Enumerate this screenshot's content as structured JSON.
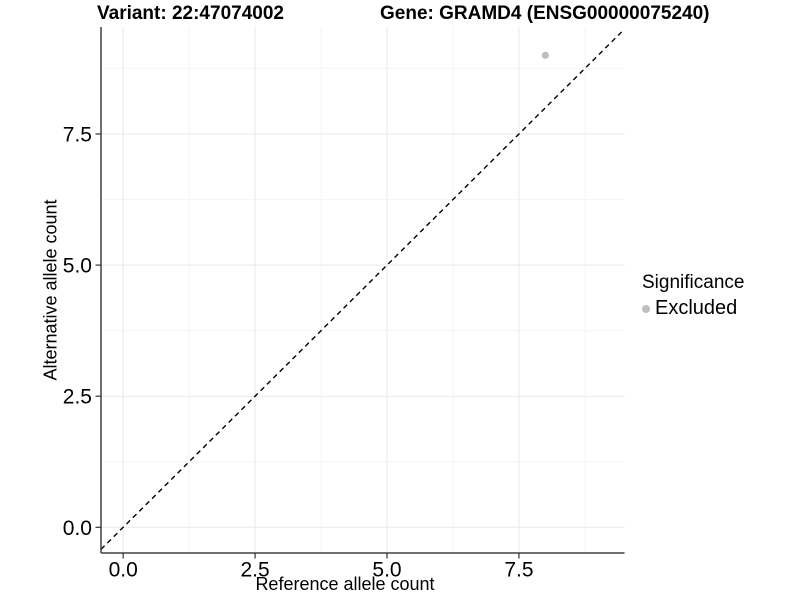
{
  "titles": {
    "variant": "Variant: 22:47074002",
    "gene": "Gene: GRAMD4 (ENSG00000075240)"
  },
  "axes": {
    "x_title": "Reference allele count",
    "y_title": "Alternative allele count",
    "x_tick_labels": [
      "0.0",
      "2.5",
      "5.0",
      "7.5"
    ],
    "y_tick_labels": [
      "0.0",
      "2.5",
      "5.0",
      "7.5"
    ]
  },
  "legend": {
    "title": "Significance",
    "items": [
      {
        "label": "Excluded",
        "color": "#bebebe"
      }
    ]
  },
  "chart_data": {
    "type": "scatter",
    "title_left": "Variant: 22:47074002",
    "title_right": "Gene: GRAMD4 (ENSG00000075240)",
    "xlabel": "Reference allele count",
    "ylabel": "Alternative allele count",
    "xlim": [
      -0.42,
      9.5
    ],
    "ylim": [
      -0.49,
      9.54
    ],
    "xticks": [
      0,
      2.5,
      5,
      7.5
    ],
    "yticks": [
      0,
      2.5,
      5,
      7.5
    ],
    "xtick_labels": [
      "0.0",
      "2.5",
      "5.0",
      "7.5"
    ],
    "ytick_labels": [
      "0.0",
      "2.5",
      "5.0",
      "7.5"
    ],
    "minor_xticks": [
      1.25,
      3.75,
      6.25,
      8.75
    ],
    "minor_yticks": [
      1.25,
      3.75,
      6.25,
      8.75
    ],
    "grid": "major+minor",
    "series": [
      {
        "name": "Excluded",
        "color": "#bebebe",
        "points": [
          {
            "x": 8,
            "y": 9
          }
        ]
      }
    ],
    "reference_line": {
      "slope": 1,
      "intercept": 0,
      "linetype": "dashed",
      "color": "#000000"
    },
    "legend_title": "Significance",
    "legend_position": "right",
    "colors": {
      "point": "#bebebe",
      "grid_major": "#e9e9e9",
      "grid_minor": "#f4f4f4",
      "axis_line": "#404040",
      "tick_mark": "#333333",
      "text": "#000000"
    }
  }
}
